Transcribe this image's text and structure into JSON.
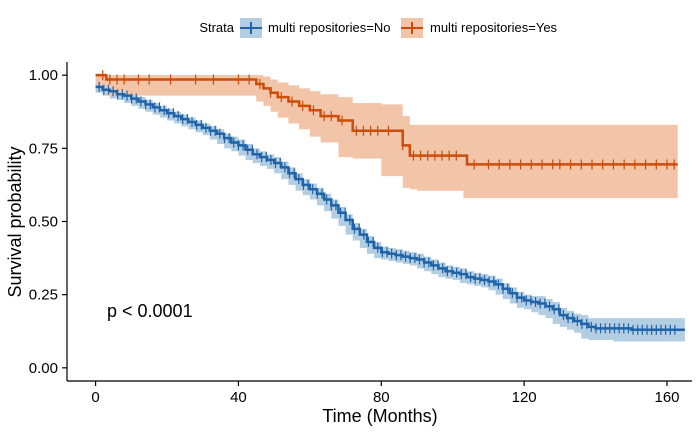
{
  "chart_data": {
    "type": "line",
    "subtype": "kaplan-meier",
    "xlabel": "Time (Months)",
    "ylabel": "Survival probability",
    "xlim": [
      -8,
      167
    ],
    "ylim": [
      -0.045,
      1.045
    ],
    "xticks": [
      0,
      40,
      80,
      120,
      160
    ],
    "yticks": [
      0.0,
      0.25,
      0.5,
      0.75,
      1.0
    ],
    "ytick_labels": [
      "0.00",
      "0.25",
      "0.50",
      "0.75",
      "1.00"
    ],
    "legend": {
      "position": "top",
      "title": "Strata",
      "entries": [
        "multi repositories=No",
        "multi repositories=Yes"
      ]
    },
    "annotation": "p < 0.0001",
    "colors": {
      "No": "#1f63a8",
      "Yes": "#cc4c0a",
      "No_band": "#b3cde3",
      "Yes_band": "#f2c4a8"
    },
    "series": [
      {
        "name": "multi repositories=No",
        "color": "#1f63a8",
        "band": "#b3cde3",
        "x": [
          0,
          2,
          4,
          6,
          8,
          10,
          12,
          14,
          16,
          18,
          20,
          22,
          24,
          26,
          28,
          30,
          32,
          34,
          36,
          38,
          40,
          42,
          44,
          46,
          48,
          50,
          52,
          54,
          56,
          58,
          60,
          62,
          64,
          66,
          68,
          70,
          72,
          74,
          76,
          78,
          80,
          82,
          84,
          86,
          88,
          90,
          92,
          94,
          96,
          98,
          100,
          102,
          104,
          106,
          108,
          110,
          112,
          114,
          116,
          118,
          120,
          122,
          124,
          126,
          128,
          130,
          132,
          134,
          136,
          138,
          140,
          145,
          150,
          155,
          160,
          165
        ],
        "y": [
          0.96,
          0.95,
          0.945,
          0.935,
          0.93,
          0.92,
          0.91,
          0.9,
          0.89,
          0.88,
          0.87,
          0.86,
          0.85,
          0.84,
          0.83,
          0.82,
          0.81,
          0.8,
          0.785,
          0.77,
          0.76,
          0.745,
          0.73,
          0.72,
          0.71,
          0.7,
          0.685,
          0.665,
          0.645,
          0.625,
          0.61,
          0.595,
          0.575,
          0.555,
          0.53,
          0.505,
          0.475,
          0.455,
          0.43,
          0.41,
          0.395,
          0.39,
          0.385,
          0.38,
          0.375,
          0.37,
          0.36,
          0.35,
          0.34,
          0.33,
          0.325,
          0.32,
          0.31,
          0.305,
          0.3,
          0.295,
          0.285,
          0.27,
          0.255,
          0.24,
          0.23,
          0.225,
          0.22,
          0.21,
          0.2,
          0.18,
          0.17,
          0.16,
          0.15,
          0.14,
          0.135,
          0.135,
          0.13,
          0.13,
          0.13,
          0.13
        ],
        "lower": [
          0.95,
          0.94,
          0.93,
          0.92,
          0.915,
          0.905,
          0.895,
          0.885,
          0.875,
          0.865,
          0.855,
          0.845,
          0.835,
          0.825,
          0.815,
          0.805,
          0.795,
          0.78,
          0.765,
          0.75,
          0.74,
          0.725,
          0.71,
          0.7,
          0.69,
          0.68,
          0.665,
          0.645,
          0.625,
          0.605,
          0.59,
          0.575,
          0.555,
          0.535,
          0.51,
          0.485,
          0.455,
          0.435,
          0.41,
          0.39,
          0.375,
          0.37,
          0.365,
          0.36,
          0.355,
          0.35,
          0.34,
          0.33,
          0.32,
          0.31,
          0.305,
          0.3,
          0.29,
          0.285,
          0.28,
          0.275,
          0.265,
          0.25,
          0.235,
          0.22,
          0.205,
          0.2,
          0.19,
          0.18,
          0.17,
          0.15,
          0.14,
          0.13,
          0.12,
          0.1,
          0.095,
          0.095,
          0.09,
          0.09,
          0.09,
          0.09
        ],
        "upper": [
          0.975,
          0.965,
          0.96,
          0.95,
          0.945,
          0.935,
          0.925,
          0.915,
          0.905,
          0.895,
          0.885,
          0.875,
          0.865,
          0.855,
          0.845,
          0.835,
          0.825,
          0.815,
          0.8,
          0.79,
          0.78,
          0.765,
          0.75,
          0.74,
          0.73,
          0.72,
          0.705,
          0.685,
          0.665,
          0.645,
          0.63,
          0.615,
          0.595,
          0.575,
          0.55,
          0.525,
          0.495,
          0.475,
          0.45,
          0.43,
          0.415,
          0.41,
          0.405,
          0.4,
          0.395,
          0.39,
          0.38,
          0.37,
          0.36,
          0.35,
          0.345,
          0.34,
          0.33,
          0.325,
          0.32,
          0.315,
          0.305,
          0.29,
          0.275,
          0.26,
          0.25,
          0.245,
          0.245,
          0.235,
          0.225,
          0.205,
          0.195,
          0.185,
          0.18,
          0.17,
          0.17,
          0.17,
          0.17,
          0.17,
          0.17,
          0.17
        ]
      },
      {
        "name": "multi repositories=Yes",
        "color": "#cc4c0a",
        "band": "#f2c4a8",
        "x": [
          0,
          1,
          3,
          45,
          47,
          49,
          51,
          54,
          57,
          60,
          63,
          68,
          72,
          80,
          86,
          88,
          90,
          103,
          104,
          163
        ],
        "y": [
          1.0,
          1.0,
          0.985,
          0.97,
          0.955,
          0.94,
          0.925,
          0.91,
          0.895,
          0.88,
          0.86,
          0.845,
          0.81,
          0.81,
          0.76,
          0.725,
          0.725,
          0.725,
          0.695,
          0.695
        ],
        "lower": [
          1.0,
          0.97,
          0.96,
          0.93,
          0.91,
          0.895,
          0.875,
          0.855,
          0.835,
          0.815,
          0.79,
          0.77,
          0.72,
          0.715,
          0.655,
          0.615,
          0.61,
          0.605,
          0.58,
          0.58
        ],
        "upper": [
          1.0,
          1.0,
          1.0,
          1.0,
          0.995,
          0.985,
          0.975,
          0.965,
          0.955,
          0.945,
          0.935,
          0.925,
          0.905,
          0.9,
          0.86,
          0.83,
          0.83,
          0.83,
          0.83,
          0.83
        ],
        "censor_x": [
          2,
          4,
          6,
          8,
          12,
          15,
          21,
          28,
          33,
          40,
          43,
          46,
          49,
          52,
          55,
          58,
          61,
          64,
          66,
          69,
          73,
          75,
          77,
          79,
          82,
          86,
          89,
          91,
          93,
          95,
          97,
          99,
          101,
          106,
          110,
          113,
          116,
          119,
          122,
          125,
          128,
          130,
          133,
          136,
          139,
          142,
          145,
          148,
          151,
          154,
          157,
          160,
          162
        ]
      }
    ]
  }
}
